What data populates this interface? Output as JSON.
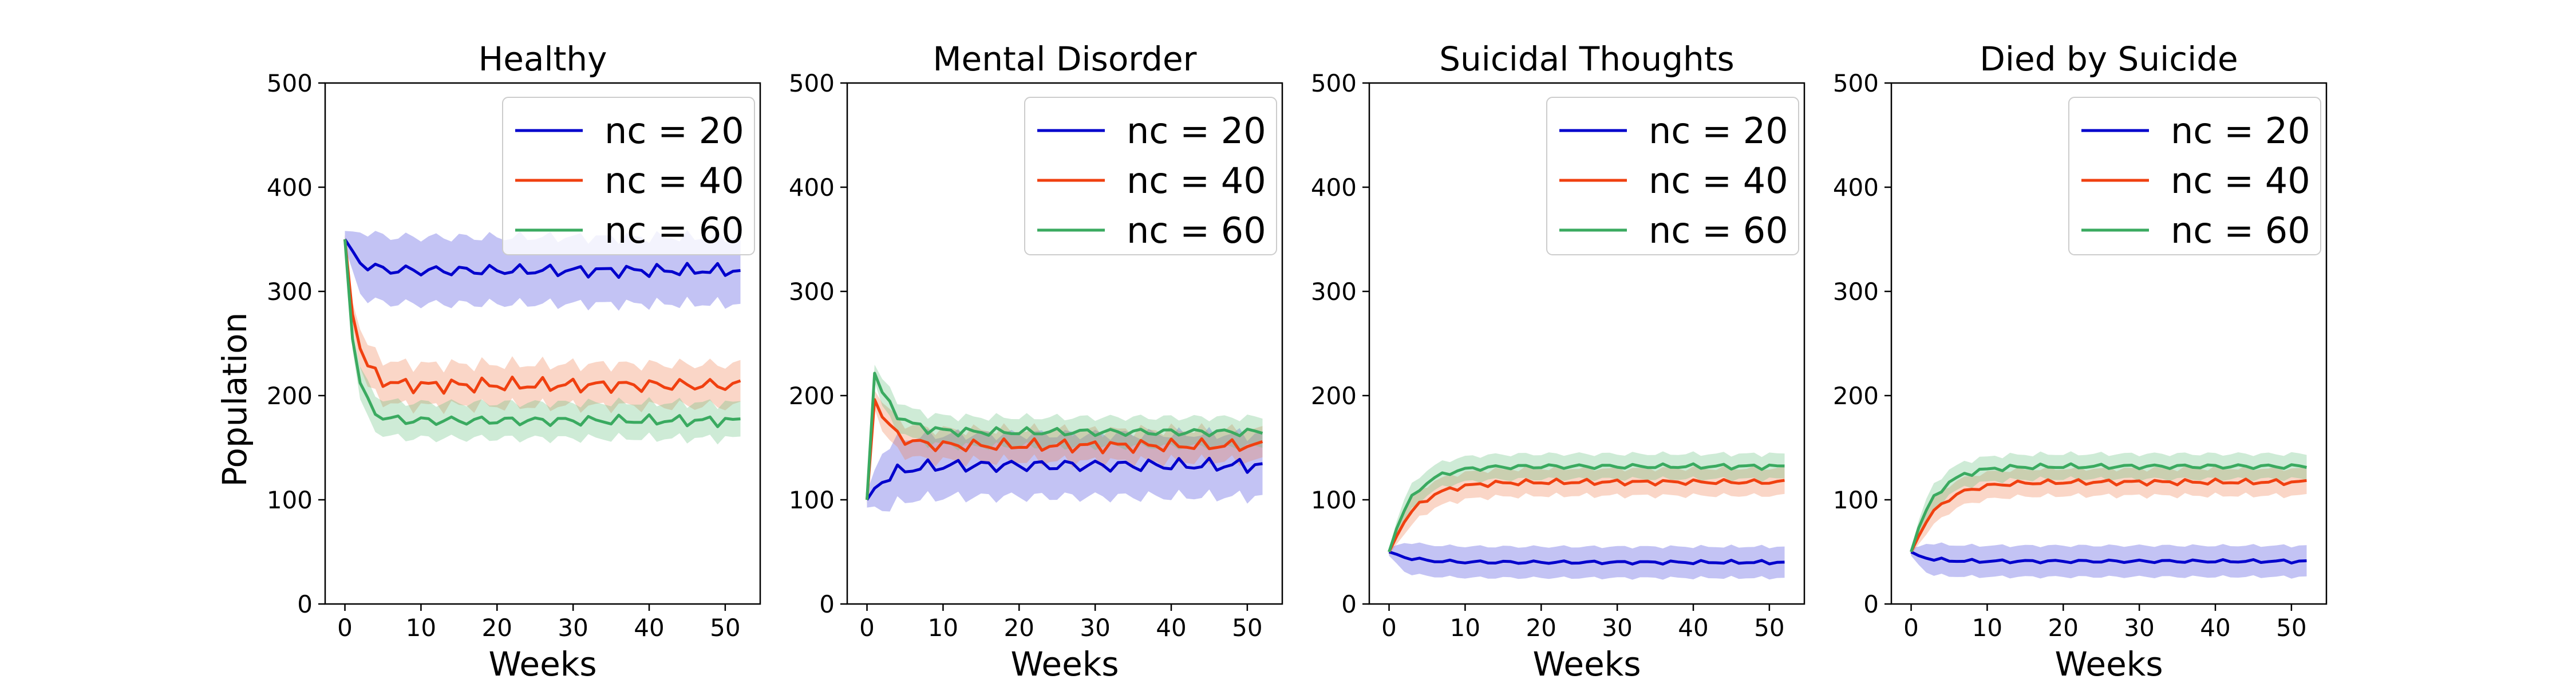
{
  "figure": {
    "ylabel": "Population",
    "legend_placement": "upper-right"
  },
  "chart_data": [
    {
      "type": "line",
      "title": "Healthy",
      "xlabel": "Weeks",
      "ylabel": "Population",
      "xlim": [
        -2.6,
        54.6
      ],
      "ylim": [
        0,
        500
      ],
      "xticks": [
        0,
        10,
        20,
        30,
        40,
        50
      ],
      "yticks": [
        0,
        100,
        200,
        300,
        400,
        500
      ],
      "grid": false,
      "legend": "top-right",
      "series": [
        {
          "name": "nc = 20",
          "color": "#0000cc",
          "band_color": "#4444dd",
          "band_halfwidth": 32,
          "start": 350,
          "plateau": 320,
          "tau": 1.6,
          "amp": 7,
          "phase": 0.3
        },
        {
          "name": "nc = 40",
          "color": "#f04010",
          "band_color": "#f08050",
          "band_halfwidth": 20,
          "start": 350,
          "plateau": 210,
          "tau": 1.5,
          "amp": 8,
          "phase": 1.7
        },
        {
          "name": "nc = 60",
          "color": "#3aaa60",
          "band_color": "#66c080",
          "band_halfwidth": 17,
          "start": 350,
          "plateau": 176,
          "tau": 1.3,
          "amp": 6,
          "phase": 2.9
        }
      ]
    },
    {
      "type": "line",
      "title": "Mental Disorder",
      "xlabel": "Weeks",
      "ylabel": "",
      "xlim": [
        -2.6,
        54.6
      ],
      "ylim": [
        0,
        500
      ],
      "xticks": [
        0,
        10,
        20,
        30,
        40,
        50
      ],
      "yticks": [
        0,
        100,
        200,
        300,
        400,
        500
      ],
      "grid": false,
      "legend": "top-right",
      "series": [
        {
          "name": "nc = 20",
          "color": "#0000cc",
          "band_color": "#4444dd",
          "band_halfwidth": 30,
          "start": 100,
          "plateau": 133,
          "tau": 2.5,
          "amp": 8,
          "phase": 0.8
        },
        {
          "name": "nc = 40",
          "color": "#f04010",
          "band_color": "#f08050",
          "band_halfwidth": 15,
          "start": 100,
          "plateau": 152,
          "tau": 2.0,
          "amp": 7,
          "phase": 2.2,
          "peak": 200
        },
        {
          "name": "nc = 60",
          "color": "#3aaa60",
          "band_color": "#66c080",
          "band_halfwidth": 14,
          "start": 100,
          "plateau": 165,
          "tau": 2.5,
          "amp": 5,
          "phase": 3.6,
          "peak": 222
        }
      ]
    },
    {
      "type": "line",
      "title": "Suicidal Thoughts",
      "xlabel": "Weeks",
      "ylabel": "",
      "xlim": [
        -2.6,
        54.6
      ],
      "ylim": [
        0,
        500
      ],
      "xticks": [
        0,
        10,
        20,
        30,
        40,
        50
      ],
      "yticks": [
        0,
        100,
        200,
        300,
        400,
        500
      ],
      "grid": false,
      "legend": "top-right",
      "series": [
        {
          "name": "nc = 20",
          "color": "#0000cc",
          "band_color": "#4444dd",
          "band_halfwidth": 15,
          "start": 50,
          "plateau": 40,
          "tau": 3,
          "amp": 2,
          "phase": 0.5
        },
        {
          "name": "nc = 40",
          "color": "#f04010",
          "band_color": "#f08050",
          "band_halfwidth": 13,
          "start": 50,
          "plateau": 117,
          "tau": 3.5,
          "amp": 3,
          "phase": 1.9
        },
        {
          "name": "nc = 60",
          "color": "#3aaa60",
          "band_color": "#66c080",
          "band_halfwidth": 12,
          "start": 50,
          "plateau": 132,
          "tau": 3.0,
          "amp": 3,
          "phase": 3.1
        }
      ]
    },
    {
      "type": "line",
      "title": "Died by Suicide",
      "xlabel": "Weeks",
      "ylabel": "",
      "xlim": [
        -2.6,
        54.6
      ],
      "ylim": [
        0,
        500
      ],
      "xticks": [
        0,
        10,
        20,
        30,
        40,
        50
      ],
      "yticks": [
        0,
        100,
        200,
        300,
        400,
        500
      ],
      "grid": false,
      "legend": "top-right",
      "series": [
        {
          "name": "nc = 20",
          "color": "#0000cc",
          "band_color": "#4444dd",
          "band_halfwidth": 15,
          "start": 50,
          "plateau": 41,
          "tau": 2,
          "amp": 2,
          "phase": 0.9
        },
        {
          "name": "nc = 40",
          "color": "#f04010",
          "band_color": "#f08050",
          "band_halfwidth": 13,
          "start": 50,
          "plateau": 117,
          "tau": 3.5,
          "amp": 3,
          "phase": 2.4
        },
        {
          "name": "nc = 60",
          "color": "#3aaa60",
          "band_color": "#66c080",
          "band_halfwidth": 12,
          "start": 50,
          "plateau": 132,
          "tau": 3.0,
          "amp": 3,
          "phase": 3.7
        }
      ]
    }
  ]
}
